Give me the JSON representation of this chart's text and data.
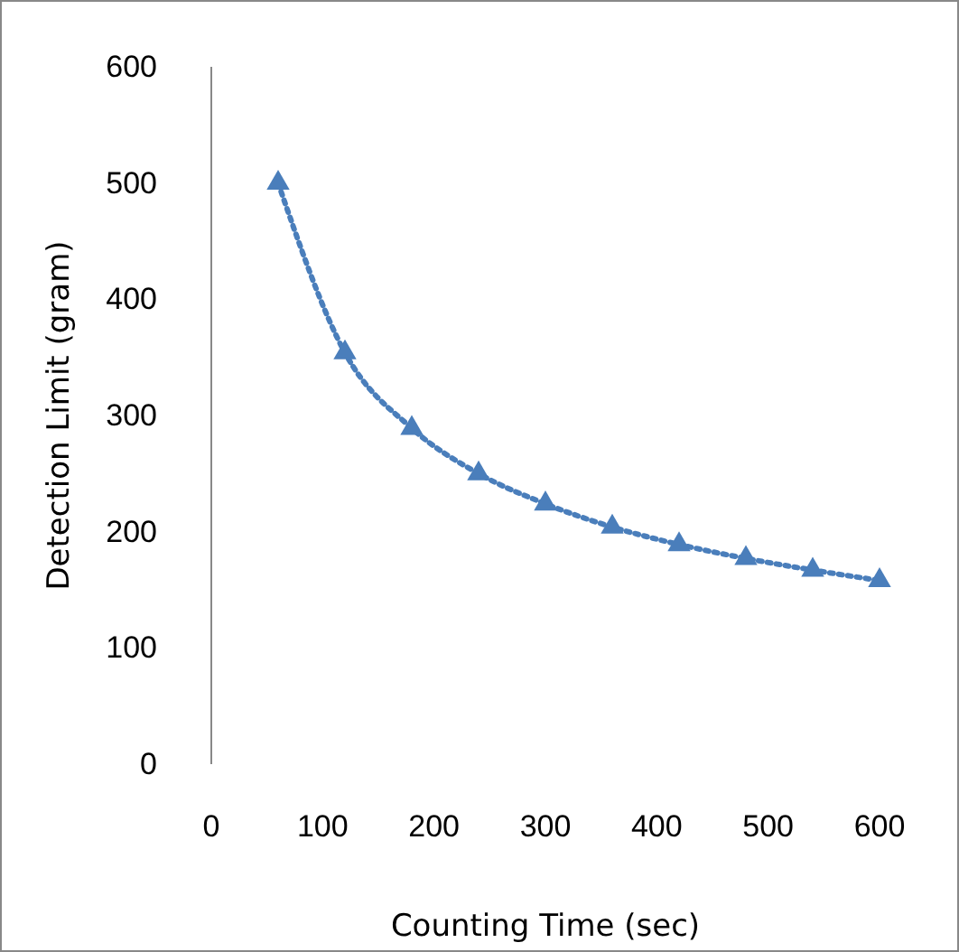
{
  "chart_data": {
    "type": "line",
    "xlabel": "Counting Time (sec)",
    "ylabel": "Detection Limit (gram)",
    "x": [
      60,
      120,
      180,
      240,
      300,
      360,
      420,
      480,
      540,
      600
    ],
    "series": [
      {
        "color": "#4a7ebb",
        "values": [
          500,
          354,
          289,
          250,
          224,
          204,
          189,
          177,
          167,
          158
        ]
      }
    ],
    "xlim": [
      0,
      600
    ],
    "xticks": [
      0,
      100,
      200,
      300,
      400,
      500,
      600
    ],
    "ylim": [
      0,
      600
    ],
    "yticks": [
      0,
      100,
      200,
      300,
      400,
      500,
      600
    ],
    "marker": "triangle",
    "line_style": "dotted"
  }
}
